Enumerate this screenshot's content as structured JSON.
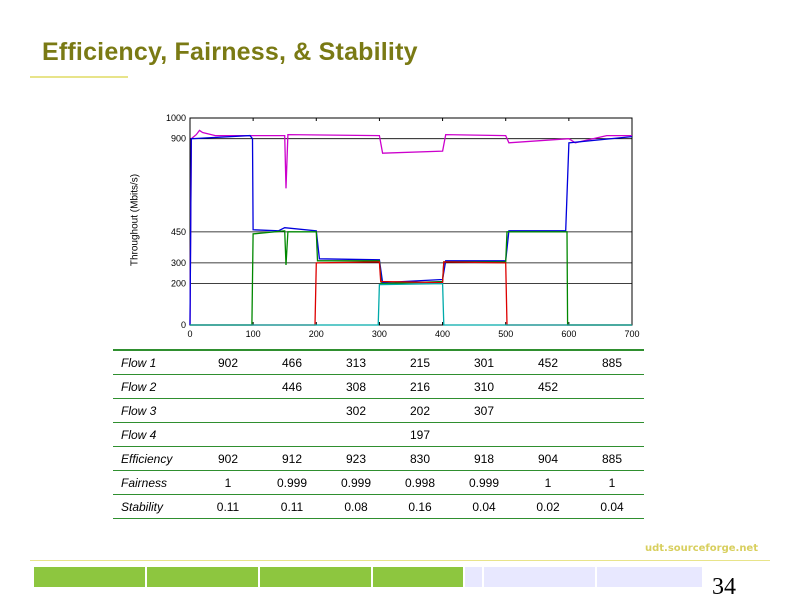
{
  "slide": {
    "title": "Efficiency, Fairness, & Stability",
    "footer_link": "udt.sourceforge.net",
    "page_number": "34"
  },
  "colors": {
    "title": "#7a7a14",
    "accent_line": "#e8e48a",
    "table_rule": "#2f8f2f",
    "footer_green": "#8dc63f",
    "footer_light": "#e8e8ff"
  },
  "chart_data": {
    "type": "line",
    "ylabel": "Throughout (Mbits/s)",
    "xlabel": "",
    "xlim": [
      0,
      700
    ],
    "ylim": [
      0,
      1000
    ],
    "xticks": [
      0,
      100,
      200,
      300,
      400,
      500,
      600,
      700
    ],
    "yticks": [
      0,
      200,
      300,
      450,
      900,
      1000
    ],
    "grid_y": [
      200,
      300,
      450,
      900
    ],
    "series": [
      {
        "color": "#cc00cc",
        "points": [
          [
            0,
            0
          ],
          [
            2,
            900
          ],
          [
            10,
            920
          ],
          [
            15,
            940
          ],
          [
            20,
            930
          ],
          [
            40,
            915
          ],
          [
            100,
            915
          ],
          [
            150,
            915
          ],
          [
            152,
            660
          ],
          [
            155,
            920
          ],
          [
            300,
            915
          ],
          [
            305,
            830
          ],
          [
            400,
            840
          ],
          [
            405,
            920
          ],
          [
            500,
            915
          ],
          [
            505,
            880
          ],
          [
            600,
            900
          ],
          [
            610,
            880
          ],
          [
            660,
            915
          ],
          [
            700,
            915
          ]
        ]
      },
      {
        "color": "#0000dd",
        "points": [
          [
            0,
            0
          ],
          [
            2,
            900
          ],
          [
            95,
            915
          ],
          [
            99,
            900
          ],
          [
            100,
            460
          ],
          [
            140,
            455
          ],
          [
            150,
            470
          ],
          [
            200,
            455
          ],
          [
            205,
            320
          ],
          [
            300,
            315
          ],
          [
            305,
            205
          ],
          [
            400,
            220
          ],
          [
            405,
            310
          ],
          [
            500,
            310
          ],
          [
            505,
            455
          ],
          [
            595,
            455
          ],
          [
            600,
            880
          ],
          [
            700,
            910
          ]
        ]
      },
      {
        "color": "#008800",
        "points": [
          [
            0,
            0
          ],
          [
            98,
            0
          ],
          [
            100,
            440
          ],
          [
            150,
            455
          ],
          [
            152,
            290
          ],
          [
            155,
            450
          ],
          [
            200,
            450
          ],
          [
            202,
            310
          ],
          [
            300,
            310
          ],
          [
            303,
            200
          ],
          [
            400,
            210
          ],
          [
            402,
            305
          ],
          [
            500,
            305
          ],
          [
            502,
            450
          ],
          [
            597,
            450
          ],
          [
            598,
            0
          ],
          [
            700,
            0
          ]
        ]
      },
      {
        "color": "#dd0000",
        "points": [
          [
            0,
            0
          ],
          [
            198,
            0
          ],
          [
            200,
            300
          ],
          [
            300,
            305
          ],
          [
            302,
            210
          ],
          [
            400,
            205
          ],
          [
            402,
            305
          ],
          [
            500,
            300
          ],
          [
            502,
            0
          ],
          [
            700,
            0
          ]
        ]
      },
      {
        "color": "#00aaaa",
        "points": [
          [
            0,
            0
          ],
          [
            298,
            0
          ],
          [
            300,
            195
          ],
          [
            400,
            200
          ],
          [
            402,
            0
          ],
          [
            700,
            0
          ]
        ]
      }
    ]
  },
  "table": {
    "rows": [
      {
        "label": "Flow 1",
        "values": [
          "902",
          "466",
          "313",
          "215",
          "301",
          "452",
          "885"
        ]
      },
      {
        "label": "Flow 2",
        "values": [
          "",
          "446",
          "308",
          "216",
          "310",
          "452",
          ""
        ]
      },
      {
        "label": "Flow 3",
        "values": [
          "",
          "",
          "302",
          "202",
          "307",
          "",
          ""
        ]
      },
      {
        "label": "Flow 4",
        "values": [
          "",
          "",
          "",
          "197",
          "",
          "",
          ""
        ]
      },
      {
        "label": "Efficiency",
        "values": [
          "902",
          "912",
          "923",
          "830",
          "918",
          "904",
          "885"
        ]
      },
      {
        "label": "Fairness",
        "values": [
          "1",
          "0.999",
          "0.999",
          "0.998",
          "0.999",
          "1",
          "1"
        ]
      },
      {
        "label": "Stability",
        "values": [
          "0.11",
          "0.11",
          "0.08",
          "0.16",
          "0.04",
          "0.02",
          "0.04"
        ]
      }
    ]
  },
  "footer_bar": [
    "green",
    "green",
    "green",
    "green",
    "light",
    "light",
    "light"
  ]
}
